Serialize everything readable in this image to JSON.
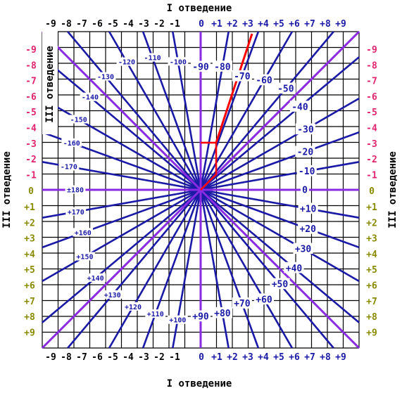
{
  "titles": {
    "top": "I отведение",
    "bottom": "I отведение",
    "left": "III отведение",
    "right": "III отведение",
    "inner": "III отведение"
  },
  "colors": {
    "grid": "#000000",
    "ray": "#1a1aa6",
    "axis": "#8a2be2",
    "vector": "#ff0000",
    "top_negative_labels": "#000000",
    "top_positive_labels": "#1a1aa6",
    "left_negative_labels": "#e0246e",
    "left_positive_labels": "#8a8a00",
    "angle_label_text": "#1a1aa6",
    "angle_label_bg": "#ffffff"
  },
  "axis_labels": {
    "i_lead_negative": [
      "-9",
      "-8",
      "-7",
      "-6",
      "-5",
      "-4",
      "-3",
      "-2",
      "-1"
    ],
    "i_lead_positive": [
      "0",
      "+1",
      "+2",
      "+3",
      "+4",
      "+5",
      "+6",
      "+7",
      "+8",
      "+9"
    ],
    "iii_lead_negative": [
      "-9",
      "-8",
      "-7",
      "-6",
      "-5",
      "-4",
      "-3",
      "-2",
      "-1"
    ],
    "iii_lead_zero": "0",
    "iii_lead_positive": [
      "+1",
      "+2",
      "+3",
      "+4",
      "+5",
      "+6",
      "+7",
      "+8",
      "+9"
    ]
  },
  "angle_labels": [
    {
      "text": "-90",
      "angle": -90,
      "r": 175
    },
    {
      "text": "-80",
      "angle": -80,
      "r": 178
    },
    {
      "text": "-70",
      "angle": -70,
      "r": 172
    },
    {
      "text": "-60",
      "angle": -60,
      "r": 180
    },
    {
      "text": "-50",
      "angle": -50,
      "r": 188
    },
    {
      "text": "-40",
      "angle": -40,
      "r": 184
    },
    {
      "text": "-30",
      "angle": -30,
      "r": 172
    },
    {
      "text": "-20",
      "angle": -20,
      "r": 158
    },
    {
      "text": "-10",
      "angle": -10,
      "r": 153
    },
    {
      "text": "0",
      "angle": 0,
      "r": 148
    },
    {
      "text": "+10",
      "angle": 10,
      "r": 155
    },
    {
      "text": "+20",
      "angle": 20,
      "r": 162
    },
    {
      "text": "+30",
      "angle": 30,
      "r": 168
    },
    {
      "text": "+40",
      "angle": 40,
      "r": 173
    },
    {
      "text": "+50",
      "angle": 50,
      "r": 175
    },
    {
      "text": "+60",
      "angle": 60,
      "r": 180
    },
    {
      "text": "+70",
      "angle": 70,
      "r": 172
    },
    {
      "text": "+80",
      "angle": 80,
      "r": 178
    },
    {
      "text": "+90",
      "angle": 90,
      "r": 180
    },
    {
      "text": "+100",
      "angle": 100,
      "r": 188
    },
    {
      "text": "+110",
      "angle": 110,
      "r": 188
    },
    {
      "text": "+120",
      "angle": 120,
      "r": 192
    },
    {
      "text": "+130",
      "angle": 130,
      "r": 195
    },
    {
      "text": "+140",
      "angle": 140,
      "r": 195
    },
    {
      "text": "+150",
      "angle": 150,
      "r": 190
    },
    {
      "text": "+160",
      "angle": 160,
      "r": 178
    },
    {
      "text": "+170",
      "angle": 170,
      "r": 180
    },
    {
      "text": "±180",
      "angle": 180,
      "r": 178
    },
    {
      "text": "-170",
      "angle": -170,
      "r": 190
    },
    {
      "text": "-160",
      "angle": -160,
      "r": 195
    },
    {
      "text": "-150",
      "angle": -150,
      "r": 200
    },
    {
      "text": "-140",
      "angle": -140,
      "r": 205
    },
    {
      "text": "-130",
      "angle": -130,
      "r": 210
    },
    {
      "text": "-120",
      "angle": -120,
      "r": 210
    },
    {
      "text": "-110",
      "angle": -110,
      "r": 200
    },
    {
      "text": "-100",
      "angle": -100,
      "r": 185
    }
  ]
}
